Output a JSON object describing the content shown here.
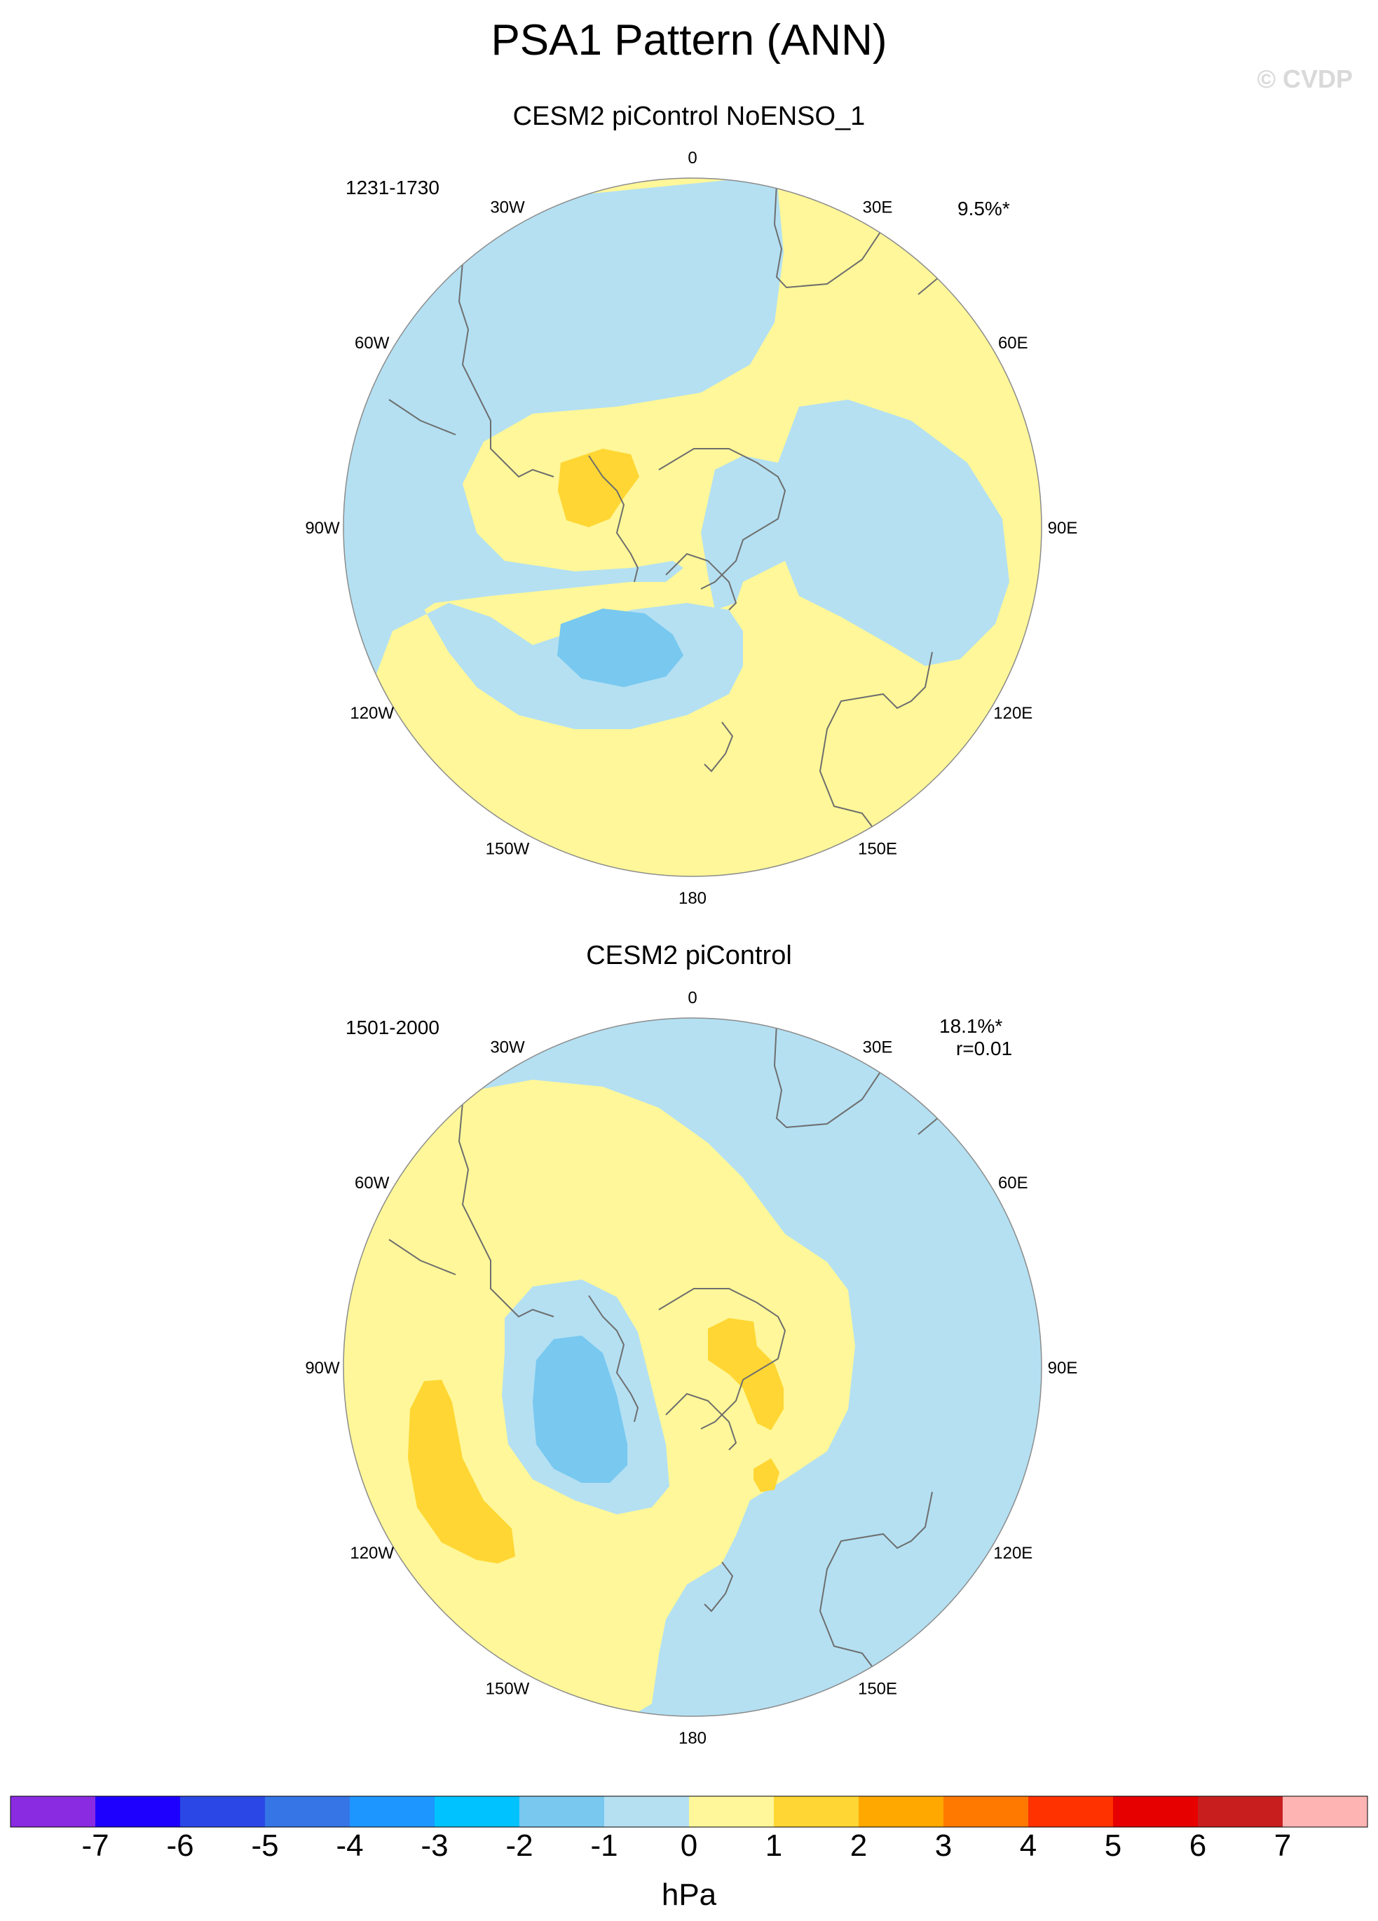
{
  "title": "PSA1 Pattern (ANN)",
  "copyright": "© CVDP",
  "panels": [
    {
      "title": "CESM2 piControl NoENSO_1",
      "years": "1231-1730",
      "pct": "9.5%*",
      "corr": ""
    },
    {
      "title": "CESM2 piControl",
      "years": "1501-2000",
      "pct": "18.1%*",
      "corr": "r=0.01"
    }
  ],
  "lon_labels": [
    "0",
    "30E",
    "60E",
    "90E",
    "120E",
    "150E",
    "180",
    "150W",
    "120W",
    "90W",
    "60W",
    "30W"
  ],
  "colorbar": {
    "units": "hPa",
    "ticks": [
      "-7",
      "-6",
      "-5",
      "-4",
      "-3",
      "-2",
      "-1",
      "0",
      "1",
      "2",
      "3",
      "4",
      "5",
      "6",
      "7"
    ],
    "colors": [
      "#8a2be2",
      "#1e00ff",
      "#2b48e6",
      "#3575e6",
      "#1e96ff",
      "#00c2ff",
      "#78c8f0",
      "#b4e0f2",
      "#fff799",
      "#ffd633",
      "#ffa800",
      "#ff7800",
      "#ff3200",
      "#e60000",
      "#c81e1e",
      "#ffb4b4"
    ]
  },
  "map_colors": {
    "neg1": "#b4e0f2",
    "neg2": "#78c8f0",
    "pos1": "#fff799",
    "pos2": "#ffd633",
    "coast": "#6e6e6e"
  }
}
